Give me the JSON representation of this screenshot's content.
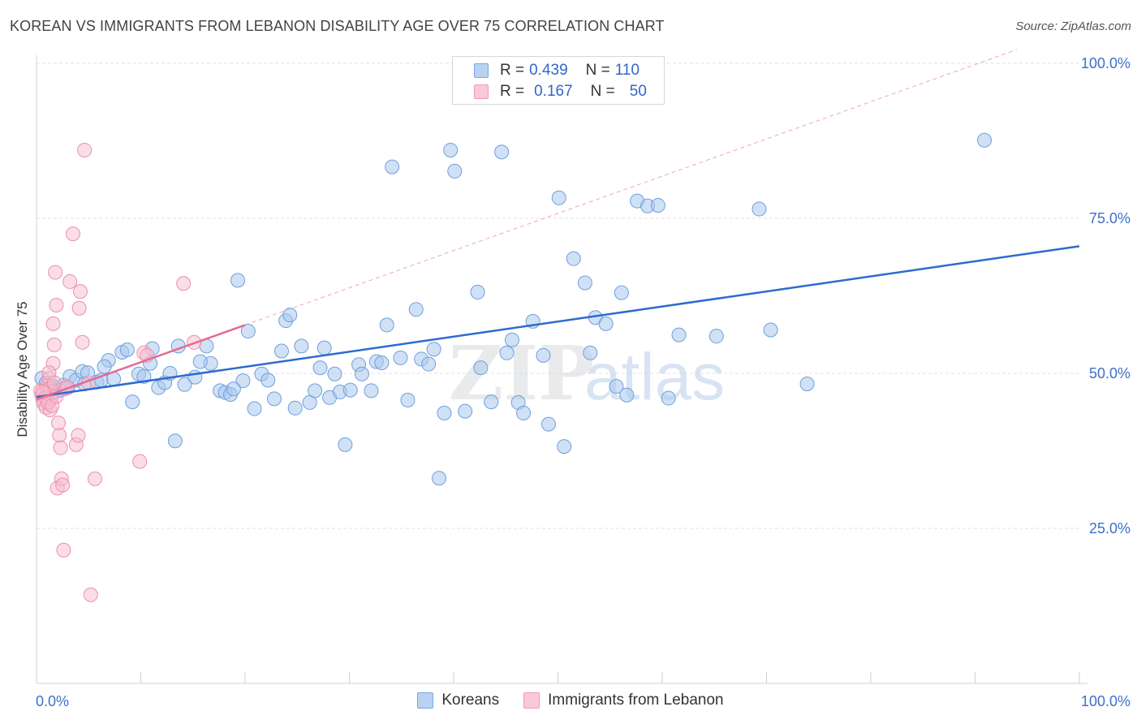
{
  "title": "KOREAN VS IMMIGRANTS FROM LEBANON DISABILITY AGE OVER 75 CORRELATION CHART",
  "source": "Source: ZipAtlas.com",
  "watermark": {
    "zip": "ZIP",
    "atlas": "atlas"
  },
  "legend_top": [
    {
      "r_label": "R =",
      "r_value": "0.439",
      "n_label": "N =",
      "n_value": "110"
    },
    {
      "r_label": "R =",
      "r_value": "0.167",
      "n_label": "N =",
      "n_value": "50"
    }
  ],
  "colors": {
    "koreans_fill": "#a9c8ef",
    "koreans_stroke": "#6f9fdc",
    "koreans_line": "#2c6bcf",
    "lebanon_fill": "#f6bccd",
    "lebanon_stroke": "#ee8fab",
    "lebanon_line": "#e46a93",
    "tick_label": "#3d6fc9",
    "grid": "#e2e2e2"
  },
  "chart_data": {
    "type": "scatter",
    "title": "KOREAN VS IMMIGRANTS FROM LEBANON DISABILITY AGE OVER 75 CORRELATION CHART",
    "xlabel": "",
    "ylabel": "Disability Age Over 75",
    "xlim": [
      0,
      100
    ],
    "ylim": [
      0,
      100
    ],
    "x_tick_labels": [
      "0.0%",
      "100.0%"
    ],
    "y_tick_labels": [
      "25.0%",
      "50.0%",
      "75.0%",
      "100.0%"
    ],
    "y_ticks": [
      25,
      50,
      75,
      100
    ],
    "grid": true,
    "legend_position": "bottom",
    "series": [
      {
        "name": "Koreans",
        "r": 0.439,
        "n": 110,
        "trend": {
          "x": [
            0,
            100
          ],
          "y": [
            46.2,
            70.5
          ]
        },
        "points": [
          [
            0.5,
            49.2
          ],
          [
            0.9,
            48.4
          ],
          [
            1.2,
            47.5
          ],
          [
            1.6,
            47.9
          ],
          [
            2.1,
            47.2
          ],
          [
            2.6,
            48.1
          ],
          [
            3.2,
            49.5
          ],
          [
            3.8,
            48.9
          ],
          [
            4.4,
            50.3
          ],
          [
            4.9,
            50.1
          ],
          [
            4.6,
            48.3
          ],
          [
            5.8,
            48.6
          ],
          [
            6.2,
            48.9
          ],
          [
            6.9,
            52.1
          ],
          [
            7.4,
            49.1
          ],
          [
            8.2,
            53.4
          ],
          [
            8.7,
            53.8
          ],
          [
            9.8,
            49.9
          ],
          [
            10.3,
            49.5
          ],
          [
            10.9,
            51.6
          ],
          [
            11.1,
            54.0
          ],
          [
            11.7,
            47.7
          ],
          [
            12.3,
            48.5
          ],
          [
            12.8,
            50.0
          ],
          [
            13.6,
            54.4
          ],
          [
            14.2,
            48.2
          ],
          [
            15.2,
            49.4
          ],
          [
            16.3,
            54.4
          ],
          [
            16.7,
            51.6
          ],
          [
            17.6,
            47.2
          ],
          [
            18.1,
            46.9
          ],
          [
            18.6,
            46.6
          ],
          [
            19.3,
            65.0
          ],
          [
            19.8,
            48.8
          ],
          [
            20.3,
            56.8
          ],
          [
            20.9,
            44.3
          ],
          [
            21.6,
            49.9
          ],
          [
            22.2,
            48.9
          ],
          [
            22.8,
            45.9
          ],
          [
            23.5,
            53.6
          ],
          [
            23.9,
            58.5
          ],
          [
            24.3,
            59.4
          ],
          [
            24.8,
            44.4
          ],
          [
            25.4,
            54.4
          ],
          [
            26.2,
            45.3
          ],
          [
            26.7,
            47.2
          ],
          [
            27.2,
            50.9
          ],
          [
            27.6,
            54.1
          ],
          [
            28.1,
            46.1
          ],
          [
            28.6,
            49.9
          ],
          [
            29.1,
            47.0
          ],
          [
            29.6,
            38.5
          ],
          [
            30.1,
            47.3
          ],
          [
            30.9,
            51.4
          ],
          [
            31.2,
            49.9
          ],
          [
            32.1,
            47.2
          ],
          [
            32.6,
            51.9
          ],
          [
            33.1,
            51.7
          ],
          [
            33.6,
            57.8
          ],
          [
            34.1,
            83.3
          ],
          [
            34.9,
            52.5
          ],
          [
            35.6,
            45.7
          ],
          [
            36.4,
            60.3
          ],
          [
            36.9,
            52.3
          ],
          [
            37.6,
            51.5
          ],
          [
            38.1,
            53.9
          ],
          [
            38.6,
            33.1
          ],
          [
            39.1,
            43.6
          ],
          [
            39.7,
            86.0
          ],
          [
            40.1,
            82.6
          ],
          [
            41.1,
            43.9
          ],
          [
            42.3,
            63.1
          ],
          [
            42.6,
            50.9
          ],
          [
            43.6,
            45.4
          ],
          [
            44.6,
            85.7
          ],
          [
            45.1,
            53.3
          ],
          [
            45.6,
            55.4
          ],
          [
            46.2,
            45.3
          ],
          [
            46.7,
            43.6
          ],
          [
            47.6,
            58.4
          ],
          [
            48.6,
            52.9
          ],
          [
            49.1,
            41.8
          ],
          [
            50.1,
            78.3
          ],
          [
            50.6,
            38.2
          ],
          [
            51.5,
            68.5
          ],
          [
            52.6,
            64.6
          ],
          [
            53.1,
            53.3
          ],
          [
            53.6,
            59.0
          ],
          [
            54.6,
            58.0
          ],
          [
            55.6,
            47.9
          ],
          [
            56.1,
            63.0
          ],
          [
            56.6,
            46.5
          ],
          [
            57.6,
            77.8
          ],
          [
            58.6,
            77.0
          ],
          [
            59.6,
            77.1
          ],
          [
            60.6,
            46.0
          ],
          [
            61.6,
            56.2
          ],
          [
            65.2,
            56.0
          ],
          [
            69.3,
            76.5
          ],
          [
            70.4,
            57.0
          ],
          [
            73.9,
            48.3
          ],
          [
            90.9,
            87.6
          ],
          [
            1.4,
            46.9
          ],
          [
            2.4,
            47.4
          ],
          [
            3.0,
            47.7
          ],
          [
            6.5,
            51.1
          ],
          [
            9.2,
            45.4
          ],
          [
            13.3,
            39.1
          ],
          [
            15.7,
            51.9
          ],
          [
            18.9,
            47.5
          ]
        ]
      },
      {
        "name": "Immigrants from Lebanon",
        "r": 0.167,
        "n": 50,
        "trend": {
          "x": [
            0,
            20
          ],
          "y": [
            45.8,
            57.8
          ]
        },
        "points": [
          [
            0.5,
            46.5
          ],
          [
            0.6,
            45.8
          ],
          [
            0.7,
            45.1
          ],
          [
            0.8,
            46.9
          ],
          [
            0.9,
            44.5
          ],
          [
            1.0,
            48.0
          ],
          [
            1.1,
            47.3
          ],
          [
            1.2,
            49.2
          ],
          [
            1.3,
            44.1
          ],
          [
            1.4,
            45.9
          ],
          [
            1.5,
            46.8
          ],
          [
            1.6,
            51.6
          ],
          [
            1.6,
            58.0
          ],
          [
            1.7,
            54.6
          ],
          [
            1.8,
            66.3
          ],
          [
            1.9,
            61.0
          ],
          [
            2.0,
            31.5
          ],
          [
            2.1,
            42.0
          ],
          [
            2.2,
            40.0
          ],
          [
            2.3,
            38.0
          ],
          [
            2.4,
            33.0
          ],
          [
            2.5,
            32.0
          ],
          [
            2.6,
            21.5
          ],
          [
            2.7,
            47.5
          ],
          [
            2.9,
            47.8
          ],
          [
            3.2,
            64.8
          ],
          [
            3.5,
            72.5
          ],
          [
            3.8,
            38.5
          ],
          [
            4.0,
            40.0
          ],
          [
            4.1,
            60.5
          ],
          [
            4.2,
            63.2
          ],
          [
            4.4,
            55.0
          ],
          [
            4.6,
            86.0
          ],
          [
            5.0,
            48.5
          ],
          [
            5.2,
            14.3
          ],
          [
            5.6,
            33.0
          ],
          [
            9.9,
            35.8
          ],
          [
            10.3,
            53.3
          ],
          [
            10.6,
            52.9
          ],
          [
            14.1,
            64.5
          ],
          [
            15.1,
            55.0
          ],
          [
            0.4,
            47.2
          ],
          [
            0.9,
            46.1
          ],
          [
            1.1,
            45.3
          ],
          [
            1.3,
            47.6
          ],
          [
            1.5,
            44.8
          ],
          [
            1.9,
            46.3
          ],
          [
            1.2,
            50.1
          ],
          [
            0.6,
            47.0
          ],
          [
            1.7,
            48.5
          ]
        ]
      }
    ]
  },
  "bottom_legend": [
    "Koreans",
    "Immigrants from Lebanon"
  ]
}
